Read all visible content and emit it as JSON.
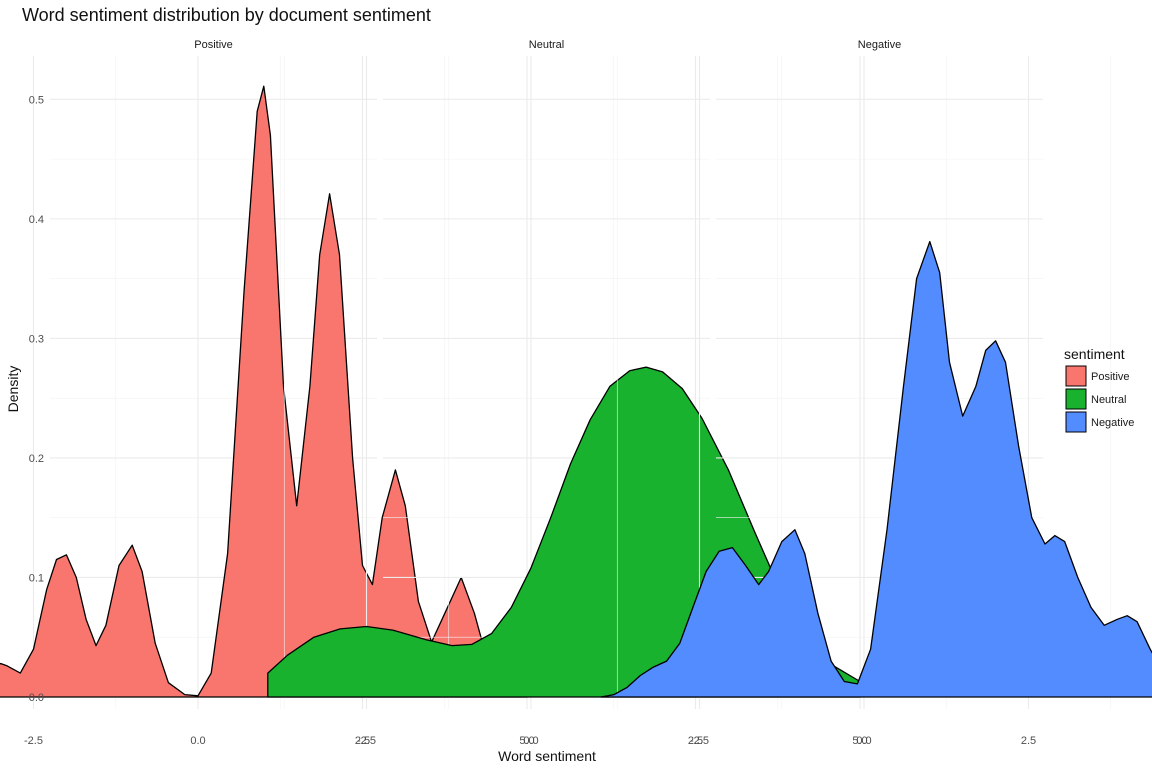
{
  "chart_data": {
    "type": "area",
    "title": "Word sentiment distribution by document sentiment",
    "xlabel": "Word sentiment",
    "ylabel": "Density",
    "xlim": [
      -4.2,
      5.3
    ],
    "ylim": [
      0,
      0.53
    ],
    "x_ticks": [
      -2.5,
      0.0,
      2.5,
      5.0
    ],
    "x_tick_labels": [
      "-2.5",
      "0.0",
      "2.5",
      "5.0"
    ],
    "y_ticks": [
      0.0,
      0.1,
      0.2,
      0.3,
      0.4,
      0.5
    ],
    "y_tick_labels": [
      "0.0",
      "0.1",
      "0.2",
      "0.3",
      "0.4",
      "0.5"
    ],
    "grid": true,
    "legend": {
      "title": "sentiment",
      "placement": "right",
      "entries": [
        "Positive",
        "Neutral",
        "Negative"
      ]
    },
    "series": [
      {
        "name": "Positive",
        "color": "#F8766D",
        "points": [
          [
            -4,
            0
          ],
          [
            -3.7,
            0.001
          ],
          [
            -3.4,
            0.008
          ],
          [
            -3.2,
            0.02
          ],
          [
            -3.0,
            0.028
          ],
          [
            -2.9,
            0.026
          ],
          [
            -2.7,
            0.02
          ],
          [
            -2.5,
            0.04
          ],
          [
            -2.3,
            0.09
          ],
          [
            -2.15,
            0.115
          ],
          [
            -2.0,
            0.119
          ],
          [
            -1.85,
            0.1
          ],
          [
            -1.7,
            0.065
          ],
          [
            -1.55,
            0.043
          ],
          [
            -1.4,
            0.06
          ],
          [
            -1.2,
            0.11
          ],
          [
            -1.0,
            0.127
          ],
          [
            -0.85,
            0.105
          ],
          [
            -0.65,
            0.045
          ],
          [
            -0.45,
            0.012
          ],
          [
            -0.2,
            0.002
          ],
          [
            0.0,
            0.001
          ],
          [
            0.2,
            0.02
          ],
          [
            0.45,
            0.12
          ],
          [
            0.7,
            0.34
          ],
          [
            0.9,
            0.49
          ],
          [
            1.0,
            0.511
          ],
          [
            1.1,
            0.47
          ],
          [
            1.3,
            0.26
          ],
          [
            1.5,
            0.16
          ],
          [
            1.7,
            0.26
          ],
          [
            1.85,
            0.37
          ],
          [
            2.0,
            0.421
          ],
          [
            2.15,
            0.37
          ],
          [
            2.35,
            0.2
          ],
          [
            2.5,
            0.11
          ],
          [
            2.65,
            0.094
          ],
          [
            2.8,
            0.15
          ],
          [
            3.0,
            0.19
          ],
          [
            3.15,
            0.16
          ],
          [
            3.35,
            0.08
          ],
          [
            3.55,
            0.046
          ],
          [
            3.75,
            0.07
          ],
          [
            4.0,
            0.1
          ],
          [
            4.2,
            0.07
          ],
          [
            4.45,
            0.02
          ],
          [
            4.7,
            0.003
          ],
          [
            5.0,
            0
          ]
        ]
      },
      {
        "name": "Neutral",
        "color": "#19B22E",
        "points": [
          [
            -4,
            0.02
          ],
          [
            -3.7,
            0.035
          ],
          [
            -3.3,
            0.05
          ],
          [
            -2.9,
            0.057
          ],
          [
            -2.5,
            0.059
          ],
          [
            -2.1,
            0.056
          ],
          [
            -1.6,
            0.048
          ],
          [
            -1.2,
            0.043
          ],
          [
            -0.9,
            0.044
          ],
          [
            -0.6,
            0.053
          ],
          [
            -0.3,
            0.075
          ],
          [
            0.0,
            0.108
          ],
          [
            0.3,
            0.15
          ],
          [
            0.6,
            0.195
          ],
          [
            0.9,
            0.232
          ],
          [
            1.2,
            0.26
          ],
          [
            1.5,
            0.273
          ],
          [
            1.75,
            0.276
          ],
          [
            2.0,
            0.272
          ],
          [
            2.3,
            0.258
          ],
          [
            2.6,
            0.233
          ],
          [
            3.0,
            0.19
          ],
          [
            3.4,
            0.138
          ],
          [
            3.8,
            0.088
          ],
          [
            4.2,
            0.05
          ],
          [
            4.6,
            0.026
          ],
          [
            5.0,
            0.013
          ]
        ]
      },
      {
        "name": "Negative",
        "color": "#528CFF",
        "points": [
          [
            -4,
            0
          ],
          [
            -3.8,
            0.002
          ],
          [
            -3.6,
            0.008
          ],
          [
            -3.4,
            0.018
          ],
          [
            -3.2,
            0.025
          ],
          [
            -3.0,
            0.03
          ],
          [
            -2.8,
            0.045
          ],
          [
            -2.6,
            0.075
          ],
          [
            -2.4,
            0.105
          ],
          [
            -2.2,
            0.122
          ],
          [
            -2.0,
            0.125
          ],
          [
            -1.8,
            0.11
          ],
          [
            -1.6,
            0.094
          ],
          [
            -1.45,
            0.105
          ],
          [
            -1.25,
            0.13
          ],
          [
            -1.05,
            0.14
          ],
          [
            -0.9,
            0.12
          ],
          [
            -0.7,
            0.07
          ],
          [
            -0.5,
            0.03
          ],
          [
            -0.3,
            0.013
          ],
          [
            -0.1,
            0.011
          ],
          [
            0.1,
            0.04
          ],
          [
            0.35,
            0.14
          ],
          [
            0.6,
            0.26
          ],
          [
            0.8,
            0.35
          ],
          [
            1.0,
            0.381
          ],
          [
            1.15,
            0.355
          ],
          [
            1.3,
            0.28
          ],
          [
            1.5,
            0.235
          ],
          [
            1.7,
            0.26
          ],
          [
            1.85,
            0.29
          ],
          [
            2.0,
            0.298
          ],
          [
            2.15,
            0.28
          ],
          [
            2.35,
            0.21
          ],
          [
            2.55,
            0.15
          ],
          [
            2.75,
            0.128
          ],
          [
            2.9,
            0.135
          ],
          [
            3.05,
            0.13
          ],
          [
            3.25,
            0.1
          ],
          [
            3.45,
            0.075
          ],
          [
            3.65,
            0.06
          ],
          [
            3.85,
            0.065
          ],
          [
            4.0,
            0.068
          ],
          [
            4.15,
            0.063
          ],
          [
            4.35,
            0.04
          ],
          [
            4.6,
            0.015
          ],
          [
            4.8,
            0.004
          ],
          [
            5.0,
            0
          ]
        ]
      }
    ]
  }
}
